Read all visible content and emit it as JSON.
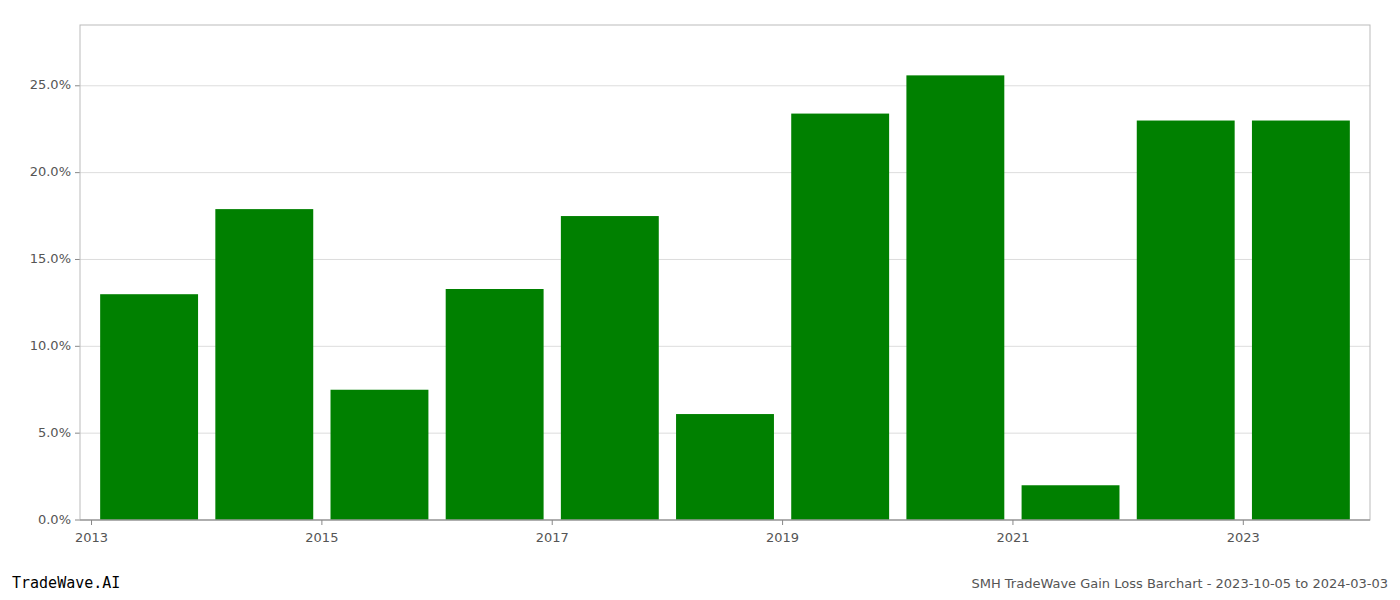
{
  "chart_data": {
    "type": "bar",
    "x": [
      2013,
      2014,
      2015,
      2016,
      2017,
      2018,
      2019,
      2020,
      2021,
      2022,
      2023
    ],
    "values": [
      0.13,
      0.179,
      0.075,
      0.133,
      0.175,
      0.061,
      0.234,
      0.256,
      0.02,
      0.23,
      0.23
    ],
    "color": "#008000",
    "xlim": [
      2012.4,
      2023.6
    ],
    "xticks": [
      {
        "value": 2012.5,
        "label": "2013"
      },
      {
        "value": 2014.5,
        "label": "2015"
      },
      {
        "value": 2016.5,
        "label": "2017"
      },
      {
        "value": 2018.5,
        "label": "2019"
      },
      {
        "value": 2020.5,
        "label": "2021"
      },
      {
        "value": 2022.5,
        "label": "2023"
      }
    ],
    "ylim": [
      0,
      0.285
    ],
    "yticks": [
      {
        "value": 0.0,
        "label": "0.0%"
      },
      {
        "value": 0.05,
        "label": "5.0%"
      },
      {
        "value": 0.1,
        "label": "10.0%"
      },
      {
        "value": 0.15,
        "label": "15.0%"
      },
      {
        "value": 0.2,
        "label": "20.0%"
      },
      {
        "value": 0.25,
        "label": "25.0%"
      }
    ],
    "grid": true,
    "annotations": [
      "TradeWave.AI",
      "SMH TradeWave Gain Loss Barchart - 2023-10-05 to 2024-03-03"
    ]
  }
}
